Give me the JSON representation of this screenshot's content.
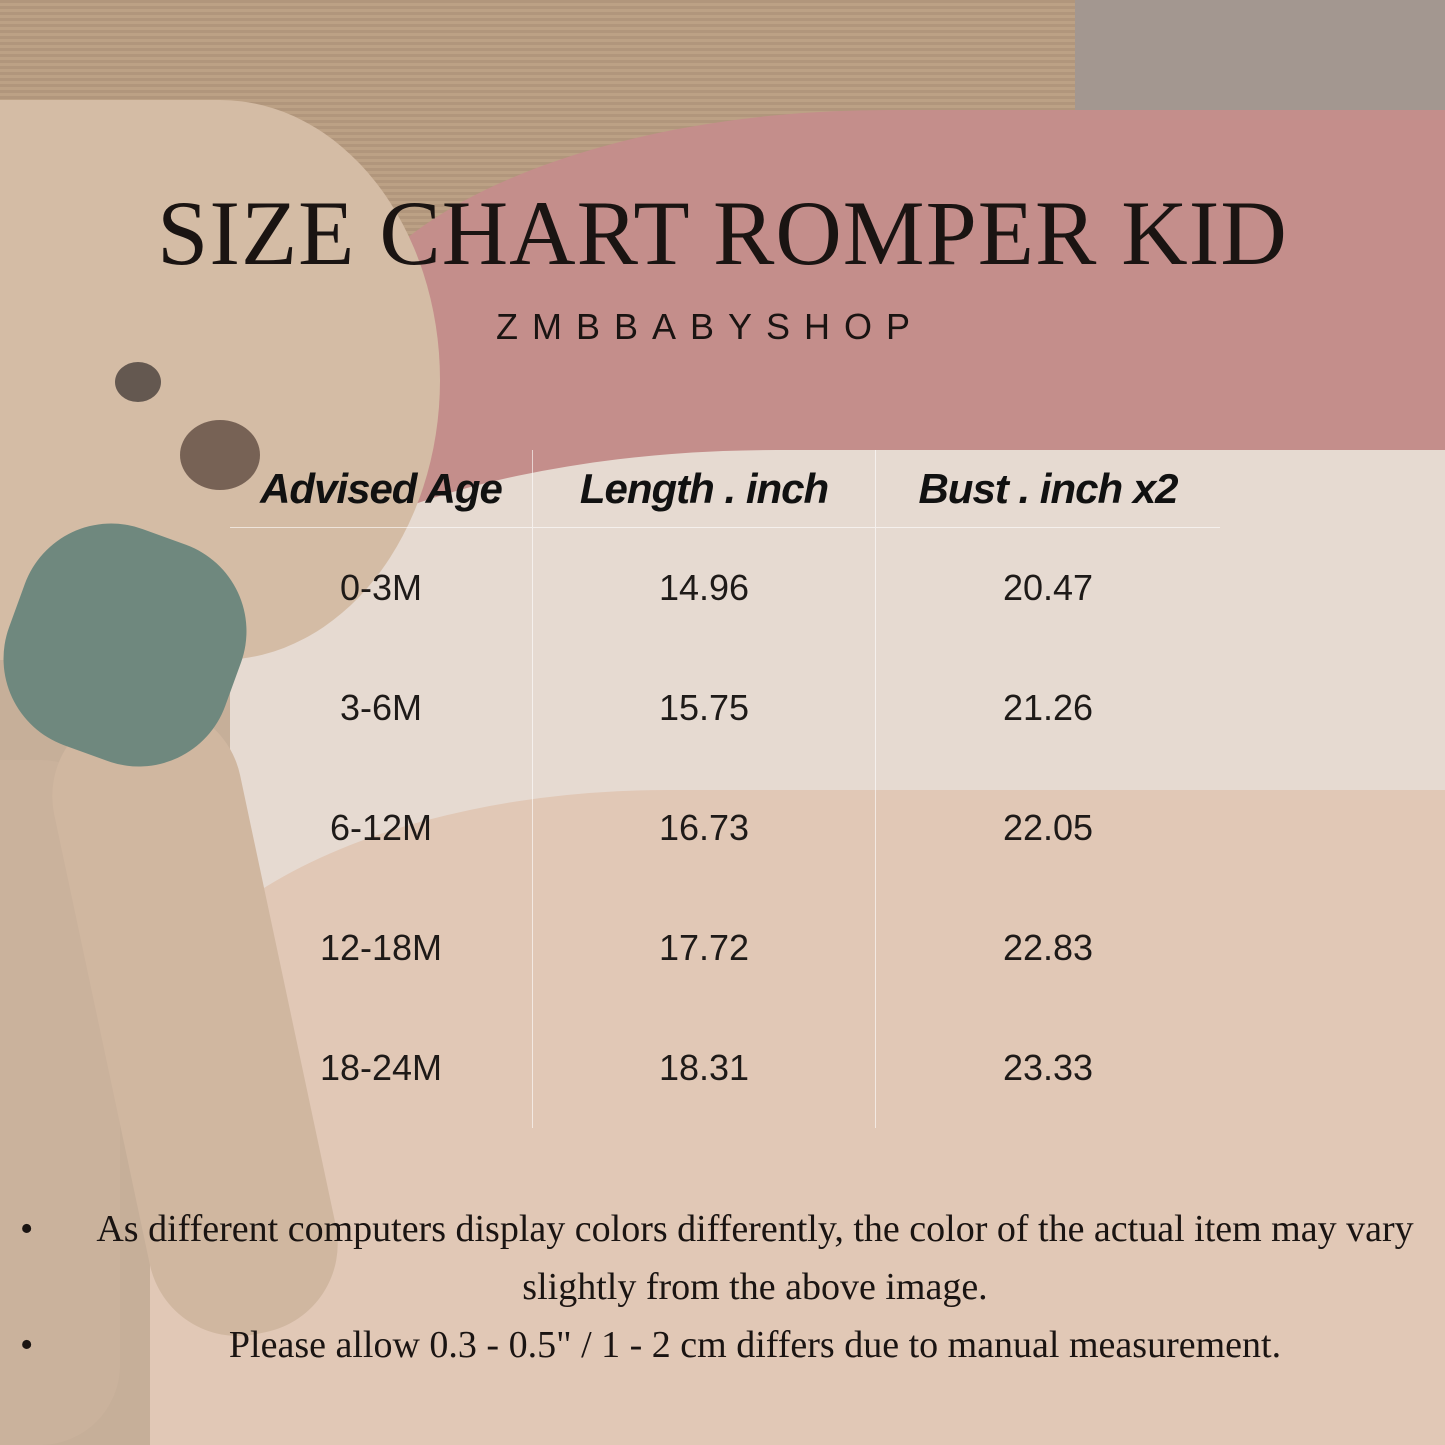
{
  "title": "SIZE CHART ROMPER KID",
  "subtitle": "ZMBBABYSHOP",
  "table": {
    "headers": [
      "Advised Age",
      "Length . inch",
      "Bust . inch x2"
    ],
    "rows": [
      [
        "0-3M",
        "14.96",
        "20.47"
      ],
      [
        "3-6M",
        "15.75",
        "21.26"
      ],
      [
        "6-12M",
        "16.73",
        "22.05"
      ],
      [
        "12-18M",
        "17.72",
        "22.83"
      ],
      [
        "18-24M",
        "18.31",
        "23.33"
      ]
    ]
  },
  "notes": [
    "As different computers display colors differently, the color of the actual item may vary slightly from the above image.",
    "Please allow 0.3 - 0.5\" / 1 - 2 cm differs due to manual measurement."
  ],
  "bullet": "•"
}
